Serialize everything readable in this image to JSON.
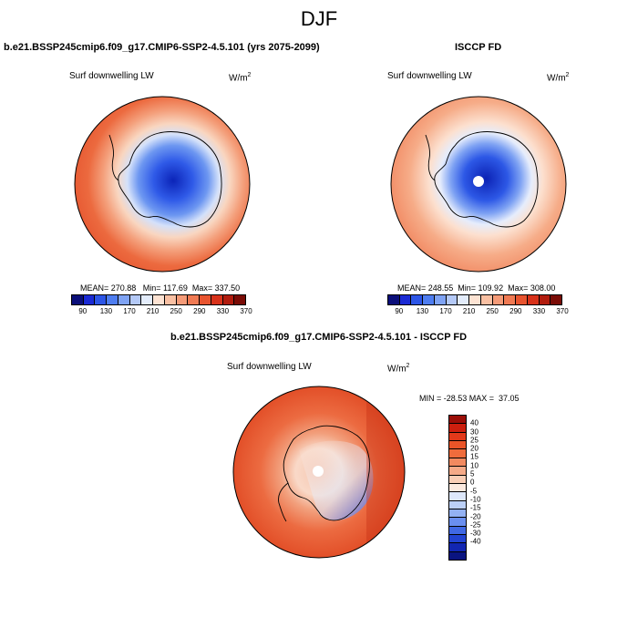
{
  "season": "DJF",
  "panels": {
    "model": {
      "title": "b.e21.BSSP245cmip6.f09_g17.CMIP6-SSP2-4.5.101 (yrs 2075-2099)",
      "variable": "Surf downwelling LW",
      "units_base": "W/m",
      "units_exp": "2",
      "stats": "MEAN= 270.88   Min= 117.69  Max= 337.50"
    },
    "obs": {
      "title": "ISCCP FD",
      "variable": "Surf downwelling LW",
      "units_base": "W/m",
      "units_exp": "2",
      "stats": "MEAN= 248.55  Min= 109.92  Max= 308.00"
    },
    "diff": {
      "title": "b.e21.BSSP245cmip6.f09_g17.CMIP6-SSP2-4.5.101 - ISCCP FD",
      "variable": "Surf downwelling LW",
      "units_base": "W/m",
      "units_exp": "2",
      "stats": "MIN = -28.53 MAX =  37.05"
    }
  },
  "colorbar_main": {
    "colors": [
      "#0b0f7a",
      "#1a2ad4",
      "#2c55e6",
      "#4e7df0",
      "#7fa3f4",
      "#b4c9f7",
      "#e3ecfb",
      "#fde3d3",
      "#f9c0a3",
      "#f59b78",
      "#f07a53",
      "#e8542f",
      "#d8321a",
      "#b11c0e",
      "#7a0c06"
    ],
    "ticks": [
      "90",
      "130",
      "170",
      "210",
      "250",
      "290",
      "330",
      "370"
    ]
  },
  "colorbar_diff": {
    "colors": [
      "#9b0e07",
      "#cc1f0e",
      "#e2391a",
      "#ea5428",
      "#ef6c3c",
      "#f28a60",
      "#f5aa88",
      "#f9ceb6",
      "#fbe9df",
      "#dde7fa",
      "#bcd0f7",
      "#93b1f3",
      "#6a8ff0",
      "#4068e4",
      "#2243d2",
      "#1226b2",
      "#0a1480"
    ],
    "ticks": [
      "40",
      "30",
      "25",
      "20",
      "15",
      "10",
      "5",
      "0",
      "-5",
      "-10",
      "-15",
      "-20",
      "-25",
      "-30",
      "-40"
    ]
  }
}
